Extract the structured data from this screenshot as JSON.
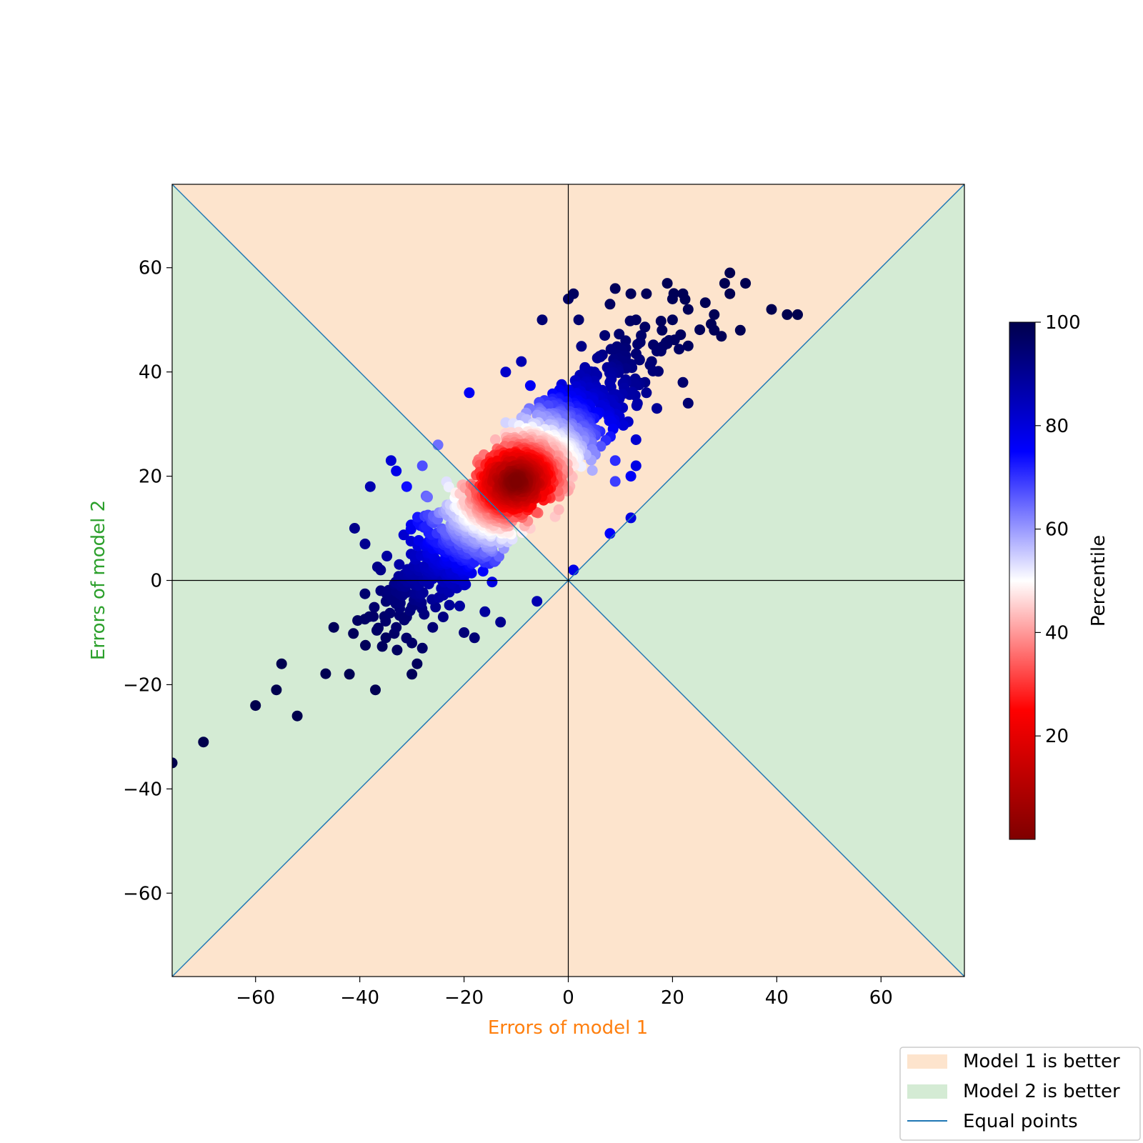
{
  "chart_data": {
    "type": "scatter",
    "xlabel": "Errors of model 1",
    "ylabel": "Errors of model 2",
    "xlim": [
      -76,
      76
    ],
    "ylim": [
      -76,
      76
    ],
    "xticks": [
      -60,
      -40,
      -20,
      0,
      20,
      40,
      60
    ],
    "yticks": [
      -60,
      -40,
      -20,
      0,
      20,
      40,
      60
    ],
    "tick_labels": [
      "−60",
      "−40",
      "−20",
      "0",
      "20",
      "40",
      "60"
    ],
    "axis_label_colors": {
      "x": "#ff7f0e",
      "y": "#2ca02c"
    },
    "region_colors": {
      "model1_better": "#fde4cd",
      "model2_better": "#d4ebd4"
    },
    "equal_line_color": "#1f77b4",
    "colorbar": {
      "label": "Percentile",
      "range": [
        0,
        100
      ],
      "ticks": [
        20,
        40,
        60,
        80,
        100
      ],
      "colormap": "seismic_r"
    },
    "legend": {
      "position": "lower-right",
      "entries": [
        {
          "label": "Model 1 is better",
          "color": "#fde4cd",
          "kind": "patch"
        },
        {
          "label": "Model 2 is better",
          "color": "#d4ebd4",
          "kind": "patch"
        },
        {
          "label": "Equal points",
          "color": "#1f77b4",
          "kind": "line"
        }
      ]
    },
    "cluster": {
      "center": [
        -10,
        19
      ],
      "core_spread": [
        7,
        6.5
      ],
      "points_count": 1600
    },
    "outlier_points": [
      [
        -76,
        -35
      ],
      [
        -70,
        -31
      ],
      [
        -60,
        -24
      ],
      [
        -56,
        -21
      ],
      [
        -52,
        -26
      ],
      [
        -55,
        -16
      ],
      [
        -45,
        -9
      ],
      [
        -42,
        -18
      ],
      [
        -41,
        10
      ],
      [
        -39,
        7
      ],
      [
        -37,
        -21
      ],
      [
        -30,
        -18
      ],
      [
        -29,
        -16
      ],
      [
        -28,
        -13
      ],
      [
        -19,
        36
      ],
      [
        -16,
        17
      ],
      [
        -14,
        27
      ],
      [
        -12,
        40
      ],
      [
        -9,
        42
      ],
      [
        -5,
        50
      ],
      [
        0,
        54
      ],
      [
        1,
        55
      ],
      [
        2,
        50
      ],
      [
        8,
        53
      ],
      [
        9,
        56
      ],
      [
        12,
        55
      ],
      [
        13,
        50
      ],
      [
        15,
        55
      ],
      [
        19,
        57
      ],
      [
        20,
        54
      ],
      [
        22,
        55
      ],
      [
        23,
        45
      ],
      [
        22,
        38
      ],
      [
        23,
        34
      ],
      [
        23,
        52
      ],
      [
        28,
        51
      ],
      [
        28,
        48
      ],
      [
        30,
        57
      ],
      [
        31,
        55
      ],
      [
        31,
        59
      ],
      [
        33,
        48
      ],
      [
        34,
        57
      ],
      [
        39,
        52
      ],
      [
        42,
        51
      ],
      [
        44,
        51
      ],
      [
        9,
        23
      ],
      [
        9,
        19
      ],
      [
        12,
        20
      ],
      [
        13,
        22
      ],
      [
        13,
        27
      ],
      [
        12,
        12
      ],
      [
        8,
        9
      ],
      [
        1,
        2
      ],
      [
        -38,
        18
      ],
      [
        -34,
        23
      ],
      [
        -33,
        21
      ],
      [
        -31,
        18
      ],
      [
        -28,
        22
      ],
      [
        -27,
        16
      ],
      [
        -25,
        26
      ],
      [
        -36,
        2
      ],
      [
        -35,
        -11
      ],
      [
        -33,
        -9
      ],
      [
        -31,
        -7
      ],
      [
        -30,
        -12
      ],
      [
        -26,
        -9
      ],
      [
        -24,
        -7
      ],
      [
        -20,
        -10
      ],
      [
        -18,
        -11
      ],
      [
        -16,
        -6
      ],
      [
        -13,
        -8
      ],
      [
        -6,
        -4
      ],
      [
        15,
        36
      ],
      [
        17,
        33
      ],
      [
        16,
        42
      ],
      [
        18,
        48
      ],
      [
        17,
        44
      ],
      [
        6,
        43
      ],
      [
        4,
        37
      ],
      [
        14,
        47
      ],
      [
        11,
        46
      ],
      [
        20,
        50
      ],
      [
        7,
        47
      ],
      [
        5,
        40
      ]
    ]
  }
}
